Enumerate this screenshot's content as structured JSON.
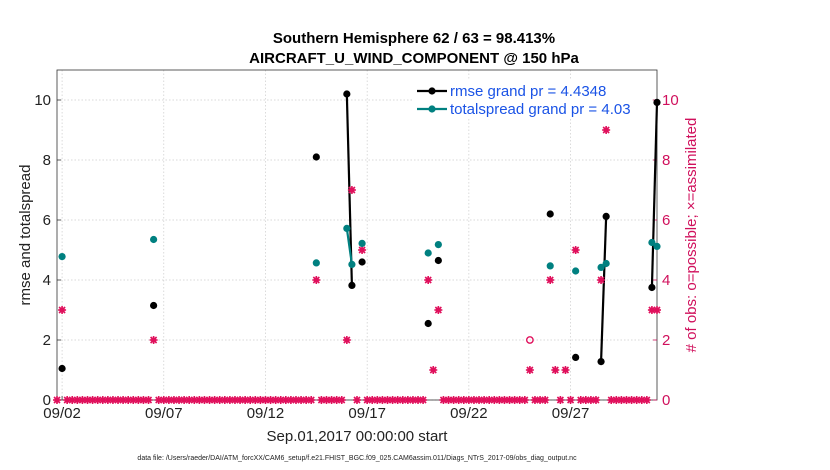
{
  "chart_data": {
    "type": "line",
    "title": "Southern Hemisphere 62 / 63 = 98.413%",
    "subtitle": "AIRCRAFT_U_WIND_COMPONENT @ 150 hPa",
    "ylabel": "rmse and totalspread",
    "ylabel_right": "# of obs: o=possible; ×=assimilated",
    "xlabel": "Sep.01,2017 00:00:00 start",
    "footnote": "data file: /Users/raeder/DAI/ATM_forcXX/CAM6_setup/f.e21.FHIST_BGC.f09_025.CAM6assim.011/Diags_NTrS_2017-09/obs_diag_output.nc",
    "xlim": [
      1.75,
      31.25
    ],
    "ylim": [
      0,
      11
    ],
    "ylim_right": [
      0,
      11
    ],
    "x_ticks": [
      2,
      7,
      12,
      17,
      22,
      27
    ],
    "x_tick_labels": [
      "09/02",
      "09/07",
      "09/12",
      "09/17",
      "09/22",
      "09/27"
    ],
    "y_ticks": [
      0,
      2,
      4,
      6,
      8,
      10
    ],
    "y_tick_labels": [
      "0",
      "2",
      "4",
      "6",
      "8",
      "10"
    ],
    "y_right_ticks": [
      0,
      2,
      4,
      6,
      8,
      10
    ],
    "y_right_tick_labels": [
      "0",
      "2",
      "4",
      "6",
      "8",
      "10"
    ],
    "legend": [
      {
        "label": "rmse grand pr = 4.4348",
        "color": "#000000"
      },
      {
        "label": "totalspread grand pr = 4.03",
        "color": "#008080"
      }
    ],
    "colors": {
      "rmse": "#000000",
      "spread": "#008080",
      "obs": "#e0105c"
    },
    "series": [
      {
        "name": "rmse",
        "x": [
          2.0,
          6.5,
          14.5,
          16.0,
          16.25,
          16.75,
          20.0,
          20.5,
          26.0,
          27.25,
          28.5,
          28.75,
          31.0,
          31.25
        ],
        "values": [
          1.05,
          3.15,
          8.1,
          10.2,
          3.82,
          4.6,
          2.55,
          4.65,
          6.2,
          1.42,
          1.28,
          6.12,
          3.75,
          9.92
        ]
      },
      {
        "name": "totalspread",
        "x": [
          2.0,
          6.5,
          14.5,
          16.0,
          16.25,
          16.75,
          20.0,
          20.5,
          26.0,
          27.25,
          28.5,
          28.75,
          31.0,
          31.25
        ],
        "values": [
          4.78,
          5.35,
          4.57,
          5.72,
          4.52,
          5.22,
          4.9,
          5.18,
          4.47,
          4.3,
          4.42,
          4.55,
          5.25,
          5.12
        ]
      }
    ],
    "obs_possible": [
      {
        "x": 25.0,
        "value": 2
      }
    ],
    "obs_assimilated": [
      {
        "x": 2.0,
        "value": 3
      },
      {
        "x": 6.5,
        "value": 2
      },
      {
        "x": 14.5,
        "value": 4
      },
      {
        "x": 16.0,
        "value": 2
      },
      {
        "x": 16.25,
        "value": 7
      },
      {
        "x": 16.75,
        "value": 5
      },
      {
        "x": 20.0,
        "value": 4
      },
      {
        "x": 20.25,
        "value": 1
      },
      {
        "x": 20.5,
        "value": 3
      },
      {
        "x": 25.0,
        "value": 1
      },
      {
        "x": 26.0,
        "value": 4
      },
      {
        "x": 26.25,
        "value": 1
      },
      {
        "x": 26.75,
        "value": 1
      },
      {
        "x": 27.25,
        "value": 5
      },
      {
        "x": 28.5,
        "value": 4
      },
      {
        "x": 28.75,
        "value": 9
      },
      {
        "x": 31.0,
        "value": 3
      },
      {
        "x": 31.25,
        "value": 3
      }
    ],
    "zero_obs_x_start": 1.75,
    "zero_obs_x_end": 31.25,
    "zero_obs_step": 0.25
  }
}
